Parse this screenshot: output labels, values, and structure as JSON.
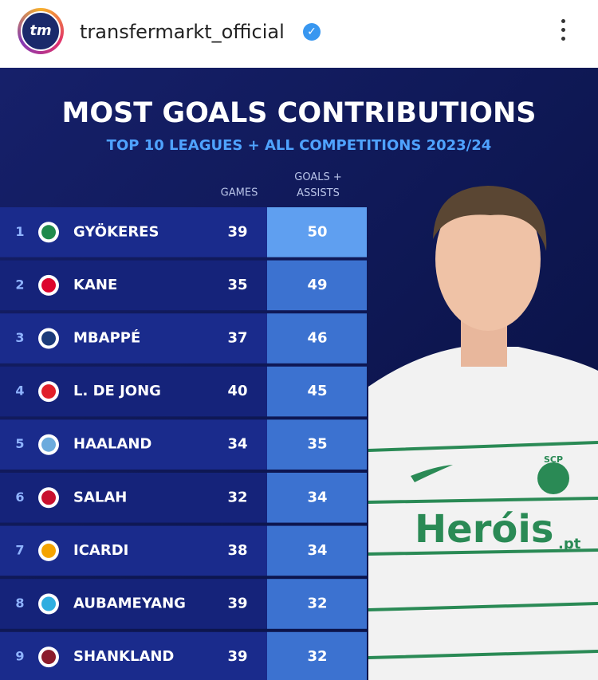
{
  "header": {
    "avatar_text": "tm",
    "username": "transfermarkt_official"
  },
  "graphic": {
    "title": "MOST GOALS CONTRIBUTIONS",
    "subtitle": "TOP 10 LEAGUES + ALL COMPETITIONS 2023/24",
    "columns": {
      "games": "GAMES",
      "goals_assists": "GOALS + ASSISTS"
    },
    "rows": [
      {
        "rank": 1,
        "player": "GYÖKERES",
        "games": 39,
        "goals_assists": 50,
        "crest_color": "#1f8a4c"
      },
      {
        "rank": 2,
        "player": "KANE",
        "games": 35,
        "goals_assists": 49,
        "crest_color": "#dc052d"
      },
      {
        "rank": 3,
        "player": "MBAPPÉ",
        "games": 37,
        "goals_assists": 46,
        "crest_color": "#1b3a7a"
      },
      {
        "rank": 4,
        "player": "L. DE JONG",
        "games": 40,
        "goals_assists": 45,
        "crest_color": "#e0202a"
      },
      {
        "rank": 5,
        "player": "HAALAND",
        "games": 34,
        "goals_assists": 35,
        "crest_color": "#6cabdd"
      },
      {
        "rank": 6,
        "player": "SALAH",
        "games": 32,
        "goals_assists": 34,
        "crest_color": "#c8102e"
      },
      {
        "rank": 7,
        "player": "ICARDI",
        "games": 38,
        "goals_assists": 34,
        "crest_color": "#f5a300"
      },
      {
        "rank": 8,
        "player": "AUBAMEYANG",
        "games": 39,
        "goals_assists": 32,
        "crest_color": "#2faee0"
      },
      {
        "rank": 9,
        "player": "SHANKLAND",
        "games": 39,
        "goals_assists": 32,
        "crest_color": "#8b1c2c"
      }
    ],
    "photo": {
      "badge": "SCP",
      "sponsor": "Heróis",
      "sponsor_suffix": ".pt"
    }
  }
}
